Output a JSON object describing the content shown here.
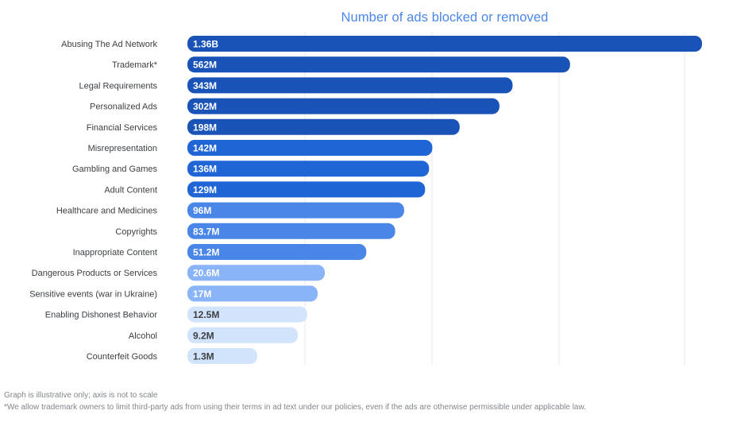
{
  "chart_data": {
    "type": "bar",
    "orientation": "horizontal",
    "title": "Number of ads blocked or removed",
    "xlabel": "",
    "ylabel": "",
    "grid": true,
    "legend": "none",
    "axis_note": "not to scale",
    "categories": [
      "Abusing The Ad Network",
      "Trademark*",
      "Legal Requirements",
      "Personalized Ads",
      "Financial Services",
      "Misrepresentation",
      "Gambling and Games",
      "Adult Content",
      "Healthcare and Medicines",
      "Copyrights",
      "Inappropriate Content",
      "Dangerous Products or Services",
      "Sensitive events (war in Ukraine)",
      "Enabling Dishonest Behavior",
      "Alcohol",
      "Counterfeit Goods"
    ],
    "values": [
      1360000000,
      562000000,
      343000000,
      302000000,
      198000000,
      142000000,
      136000000,
      129000000,
      96000000,
      83700000,
      51200000,
      20600000,
      17000000,
      12500000,
      9200000,
      1300000
    ],
    "value_labels": [
      "1.36B",
      "562M",
      "343M",
      "302M",
      "198M",
      "142M",
      "136M",
      "129M",
      "96M",
      "83.7M",
      "51.2M",
      "20.6M",
      "17M",
      "12.5M",
      "9.2M",
      "1.3M"
    ],
    "bar_colors": [
      "#1a53b8",
      "#1a53b8",
      "#1a53b8",
      "#1a53b8",
      "#1a53b8",
      "#1f65d6",
      "#1f65d6",
      "#1f65d6",
      "#4a86e8",
      "#4a86e8",
      "#4a86e8",
      "#8ab4f8",
      "#8ab4f8",
      "#d2e3fc",
      "#d2e3fc",
      "#d2e3fc"
    ],
    "label_colors": [
      "#ffffff",
      "#ffffff",
      "#ffffff",
      "#ffffff",
      "#ffffff",
      "#ffffff",
      "#ffffff",
      "#ffffff",
      "#ffffff",
      "#ffffff",
      "#ffffff",
      "#ffffff",
      "#ffffff",
      "#3c4043",
      "#3c4043",
      "#3c4043"
    ]
  },
  "footnotes": {
    "illustrative": "Graph is illustrative only; axis is not to scale",
    "trademark": "*We allow trademark owners to limit third-party ads from using their terms in ad text under our policies, even if the ads are otherwise permissible under applicable law."
  }
}
